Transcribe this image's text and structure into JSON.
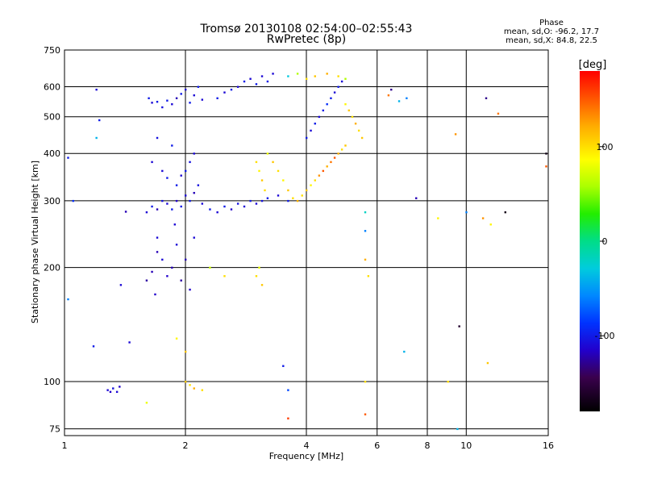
{
  "header": {
    "title_line1": "Tromsø 20130108 02:54:00–02:55:43",
    "title_line2": "RwPretec (8p)"
  },
  "phase_info": {
    "heading": "Phase",
    "line_o": "mean, sd,O: -96.2, 17.7",
    "line_x": "mean, sd,X:  84.8, 22.5"
  },
  "chart_data": {
    "type": "scatter",
    "xlabel": "Frequency [MHz]",
    "ylabel": "Stationary phase Virtual Height [km]",
    "x_scale": "log",
    "y_scale": "log",
    "xlim": [
      1,
      16
    ],
    "ylim": [
      72,
      750
    ],
    "x_ticks": [
      {
        "v": 1,
        "label": "1"
      },
      {
        "v": 2,
        "label": "2"
      },
      {
        "v": 4,
        "label": "4"
      },
      {
        "v": 6,
        "label": "6"
      },
      {
        "v": 8,
        "label": "8"
      },
      {
        "v": 10,
        "label": "10"
      },
      {
        "v": 16,
        "label": "16"
      }
    ],
    "y_ticks": [
      {
        "v": 75,
        "label": "75"
      },
      {
        "v": 100,
        "label": "100"
      },
      {
        "v": 200,
        "label": "200"
      },
      {
        "v": 300,
        "label": "300"
      },
      {
        "v": 400,
        "label": "400"
      },
      {
        "v": 500,
        "label": "500"
      },
      {
        "v": 600,
        "label": "600"
      },
      {
        "v": 750,
        "label": "750"
      }
    ],
    "grid": true,
    "colorbar": {
      "label": "[deg]",
      "range": [
        -180,
        180
      ],
      "ticks": [
        {
          "v": 100,
          "label": "100"
        },
        {
          "v": 0,
          "label": "0"
        },
        {
          "v": -100,
          "label": "-100"
        }
      ]
    },
    "series": [
      {
        "points": [
          [
            1.2,
            590,
            -110
          ],
          [
            1.22,
            490,
            -100
          ],
          [
            1.2,
            440,
            -40
          ],
          [
            1.28,
            95,
            -110
          ],
          [
            1.3,
            94,
            -115
          ],
          [
            1.32,
            96,
            -105
          ],
          [
            1.35,
            94,
            -110
          ],
          [
            1.37,
            97,
            -115
          ],
          [
            1.42,
            281,
            -120
          ],
          [
            1.38,
            180,
            -110
          ],
          [
            1.45,
            127,
            -110
          ],
          [
            1.18,
            124,
            -100
          ],
          [
            1.02,
            165,
            -60
          ],
          [
            1.62,
            560,
            -100
          ],
          [
            1.65,
            545,
            -110
          ],
          [
            1.7,
            548,
            -100
          ],
          [
            1.75,
            530,
            -105
          ],
          [
            1.8,
            552,
            -100
          ],
          [
            1.85,
            540,
            -110
          ],
          [
            1.9,
            560,
            -120
          ],
          [
            1.95,
            575,
            -100
          ],
          [
            2.0,
            590,
            -110
          ],
          [
            2.05,
            545,
            -100
          ],
          [
            2.1,
            570,
            -110
          ],
          [
            2.15,
            600,
            -100
          ],
          [
            2.2,
            555,
            -110
          ],
          [
            1.6,
            280,
            -110
          ],
          [
            1.65,
            290,
            -100
          ],
          [
            1.7,
            285,
            -120
          ],
          [
            1.75,
            300,
            -105
          ],
          [
            1.8,
            295,
            -110
          ],
          [
            1.85,
            285,
            -100
          ],
          [
            1.9,
            300,
            -115
          ],
          [
            1.95,
            290,
            -100
          ],
          [
            2.0,
            310,
            -110
          ],
          [
            2.05,
            300,
            -100
          ],
          [
            2.1,
            315,
            -120
          ],
          [
            2.15,
            330,
            -105
          ],
          [
            2.2,
            295,
            -110
          ],
          [
            2.3,
            285,
            -100
          ],
          [
            2.4,
            280,
            -110
          ],
          [
            2.5,
            290,
            -100
          ],
          [
            2.6,
            285,
            -115
          ],
          [
            2.7,
            295,
            -105
          ],
          [
            2.8,
            290,
            -110
          ],
          [
            2.9,
            300,
            -100
          ],
          [
            3.0,
            295,
            -110
          ],
          [
            3.1,
            300,
            -105
          ],
          [
            3.2,
            305,
            -100
          ],
          [
            3.4,
            310,
            -110
          ],
          [
            3.6,
            300,
            -100
          ],
          [
            1.7,
            220,
            -120
          ],
          [
            1.75,
            210,
            -110
          ],
          [
            1.8,
            190,
            -115
          ],
          [
            1.85,
            200,
            -120
          ],
          [
            1.9,
            230,
            -110
          ],
          [
            1.95,
            185,
            -125
          ],
          [
            2.0,
            210,
            -120
          ],
          [
            2.05,
            175,
            -115
          ],
          [
            2.1,
            240,
            -110
          ],
          [
            1.65,
            195,
            -120
          ],
          [
            1.7,
            240,
            -110
          ],
          [
            1.6,
            185,
            -125
          ],
          [
            1.68,
            170,
            -115
          ],
          [
            1.88,
            260,
            -110
          ],
          [
            1.9,
            330,
            -100
          ],
          [
            1.95,
            350,
            -110
          ],
          [
            2.0,
            360,
            -100
          ],
          [
            2.05,
            380,
            -105
          ],
          [
            2.1,
            400,
            -110
          ],
          [
            1.8,
            345,
            -100
          ],
          [
            1.75,
            360,
            -110
          ],
          [
            1.85,
            420,
            -100
          ],
          [
            1.7,
            440,
            -105
          ],
          [
            1.65,
            380,
            -110
          ],
          [
            2.4,
            560,
            -100
          ],
          [
            2.5,
            580,
            -110
          ],
          [
            2.6,
            590,
            -100
          ],
          [
            2.7,
            600,
            -110
          ],
          [
            2.8,
            620,
            -100
          ],
          [
            2.9,
            630,
            -110
          ],
          [
            3.0,
            610,
            -100
          ],
          [
            3.1,
            640,
            -110
          ],
          [
            3.2,
            620,
            -100
          ],
          [
            3.3,
            650,
            -110
          ],
          [
            3.6,
            640,
            -30
          ],
          [
            3.8,
            650,
            60
          ],
          [
            4.0,
            630,
            100
          ],
          [
            4.2,
            640,
            110
          ],
          [
            4.5,
            650,
            120
          ],
          [
            4.8,
            640,
            100
          ],
          [
            5.0,
            630,
            60
          ],
          [
            3.0,
            380,
            100
          ],
          [
            3.05,
            360,
            90
          ],
          [
            3.1,
            340,
            110
          ],
          [
            3.15,
            320,
            100
          ],
          [
            3.2,
            400,
            80
          ],
          [
            3.3,
            380,
            110
          ],
          [
            3.4,
            360,
            100
          ],
          [
            3.5,
            340,
            90
          ],
          [
            3.6,
            320,
            110
          ],
          [
            3.7,
            305,
            100
          ],
          [
            3.8,
            300,
            120
          ],
          [
            3.9,
            310,
            100
          ],
          [
            4.0,
            320,
            110
          ],
          [
            4.1,
            330,
            90
          ],
          [
            4.2,
            340,
            100
          ],
          [
            4.3,
            350,
            130
          ],
          [
            4.4,
            360,
            150
          ],
          [
            4.5,
            370,
            120
          ],
          [
            4.6,
            380,
            140
          ],
          [
            4.7,
            390,
            150
          ],
          [
            4.8,
            400,
            120
          ],
          [
            4.9,
            410,
            100
          ],
          [
            5.0,
            420,
            110
          ],
          [
            4.0,
            440,
            -100
          ],
          [
            4.1,
            460,
            -110
          ],
          [
            4.2,
            480,
            -100
          ],
          [
            4.3,
            500,
            -110
          ],
          [
            4.4,
            520,
            -100
          ],
          [
            4.5,
            540,
            -90
          ],
          [
            4.6,
            560,
            -100
          ],
          [
            4.7,
            580,
            -110
          ],
          [
            4.8,
            600,
            -100
          ],
          [
            4.9,
            620,
            -110
          ],
          [
            5.0,
            540,
            90
          ],
          [
            5.1,
            520,
            110
          ],
          [
            5.2,
            500,
            100
          ],
          [
            5.3,
            480,
            120
          ],
          [
            5.4,
            460,
            100
          ],
          [
            5.5,
            440,
            110
          ],
          [
            3.0,
            190,
            100
          ],
          [
            3.05,
            200,
            80
          ],
          [
            3.1,
            180,
            110
          ],
          [
            2.5,
            190,
            100
          ],
          [
            2.3,
            200,
            70
          ],
          [
            2.0,
            100,
            110
          ],
          [
            2.05,
            98,
            100
          ],
          [
            2.1,
            96,
            120
          ],
          [
            2.2,
            95,
            100
          ],
          [
            1.6,
            88,
            80
          ],
          [
            1.9,
            130,
            90
          ],
          [
            2.0,
            120,
            110
          ],
          [
            3.5,
            110,
            -100
          ],
          [
            3.6,
            95,
            -80
          ],
          [
            3.6,
            80,
            160
          ],
          [
            5.6,
            100,
            100
          ],
          [
            5.6,
            82,
            150
          ],
          [
            5.6,
            210,
            120
          ],
          [
            5.6,
            280,
            -20
          ],
          [
            5.6,
            250,
            -60
          ],
          [
            5.7,
            190,
            100
          ],
          [
            7.0,
            120,
            -40
          ],
          [
            7.5,
            305,
            -120
          ],
          [
            7.1,
            560,
            -60
          ],
          [
            6.5,
            590,
            -130
          ],
          [
            6.4,
            570,
            140
          ],
          [
            6.8,
            550,
            -40
          ],
          [
            8.5,
            270,
            90
          ],
          [
            9.0,
            100,
            100
          ],
          [
            9.5,
            75,
            -40
          ],
          [
            10.0,
            280,
            -60
          ],
          [
            9.4,
            450,
            130
          ],
          [
            9.6,
            140,
            -160
          ],
          [
            11.0,
            270,
            130
          ],
          [
            11.5,
            260,
            90
          ],
          [
            11.2,
            560,
            -130
          ],
          [
            12.0,
            510,
            140
          ],
          [
            12.5,
            280,
            -170
          ],
          [
            11.3,
            112,
            110
          ],
          [
            15.8,
            400,
            -170
          ],
          [
            15.8,
            370,
            150
          ],
          [
            1.02,
            390,
            -100
          ],
          [
            1.05,
            300,
            -90
          ]
        ]
      }
    ]
  }
}
